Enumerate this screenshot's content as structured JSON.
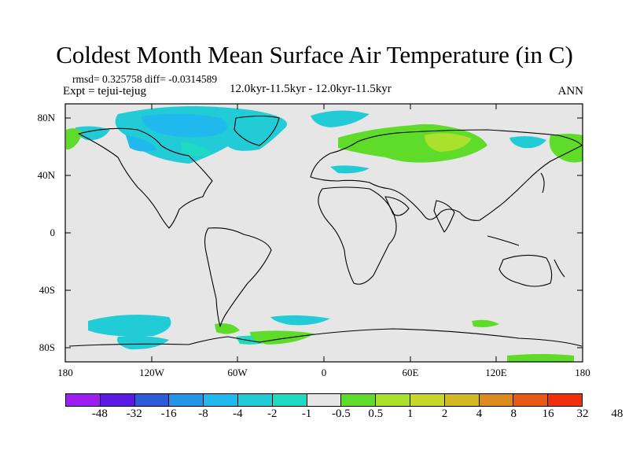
{
  "title": "Coldest Month Mean Surface Air Temperature (in C)",
  "stats_line": "rmsd= 0.325758  diff= -0.0314589",
  "experiment": "Expt = tejui-tejug",
  "subtitle": "12.0kyr-11.5kyr - 12.0kyr-11.5kyr",
  "season": "ANN",
  "lat_ticks": [
    "80N",
    "40N",
    "0",
    "40S",
    "80S"
  ],
  "lon_ticks": [
    "180",
    "120W",
    "60W",
    "0",
    "60E",
    "120E",
    "180"
  ],
  "colorbar": {
    "colors": [
      "#9b1ff2",
      "#5a19e6",
      "#2c5cd9",
      "#1f96e6",
      "#1fb9ee",
      "#22ccd6",
      "#1fd9c2",
      "#e6e6e6",
      "#5fdc2a",
      "#a9e12c",
      "#c8d62a",
      "#d4b823",
      "#dc8c1c",
      "#e85a14",
      "#f0300c"
    ],
    "labels": [
      "-48",
      "-32",
      "-16",
      "-8",
      "-4",
      "-2",
      "-1",
      "-0.5",
      "0.5",
      "1",
      "2",
      "4",
      "8",
      "16",
      "32",
      "48"
    ]
  }
}
